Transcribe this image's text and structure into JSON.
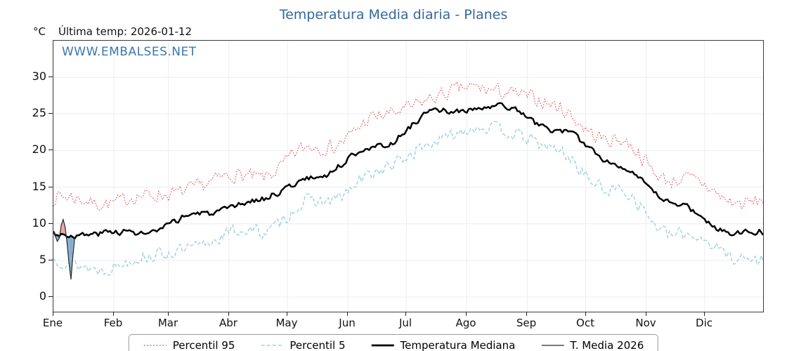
{
  "title": "Temperatura Media diaria - Planes",
  "header": {
    "unit_label": "°C",
    "last_temp_label": "Última temp: 2026-01-12"
  },
  "watermark": "WWW.EMBALSES.NET",
  "colors": {
    "title_blue": "#35689d",
    "watermark_blue": "#3c78ad",
    "percentil95_red": "#dd5555",
    "percentil5_blue": "#9fd0e0",
    "median_black": "#000000",
    "tmedia_line": "#2a2a2a",
    "fill_above": "#e8a3a3",
    "fill_below": "#7fa8cc",
    "grid": "#e9edf3"
  },
  "chart_data": {
    "type": "line",
    "title": "Temperatura Media diaria - Planes",
    "xlabel": "",
    "ylabel": "°C",
    "x_tick_labels": [
      "Ene",
      "Feb",
      "Mar",
      "Abr",
      "May",
      "Jun",
      "Jul",
      "Ago",
      "Sep",
      "Oct",
      "Nov",
      "Dic"
    ],
    "month_start_days": [
      0,
      31,
      59,
      90,
      120,
      151,
      181,
      212,
      243,
      273,
      304,
      334
    ],
    "month_lengths": [
      31,
      28,
      31,
      30,
      31,
      30,
      31,
      31,
      30,
      31,
      30,
      31
    ],
    "days_in_year": 365,
    "yticks": [
      0,
      5,
      10,
      15,
      20,
      25,
      30
    ],
    "ylim": [
      -2,
      35
    ],
    "grid": true,
    "legend_position": "bottom",
    "series": [
      {
        "name": "Percentil 95",
        "style": "dotted",
        "color": "#dd5555",
        "noise": 1.2,
        "monthly": [
          13.2,
          13.3,
          15.3,
          16.8,
          20.3,
          24.2,
          27.6,
          28.6,
          25.8,
          21.0,
          16.2,
          13.3
        ]
      },
      {
        "name": "Percentil 5",
        "style": "dashed",
        "color": "#9fd0e0",
        "noise": 1.1,
        "monthly": [
          4.0,
          5.0,
          7.2,
          9.3,
          12.8,
          16.8,
          21.6,
          23.3,
          19.8,
          14.3,
          8.8,
          5.8
        ]
      },
      {
        "name": "Temperatura Mediana",
        "style": "solid",
        "color": "#000000",
        "noise": 0.5,
        "monthly": [
          8.6,
          8.8,
          11.2,
          13.2,
          16.6,
          20.6,
          25.2,
          26.0,
          23.0,
          18.2,
          12.6,
          8.8
        ]
      },
      {
        "name": "T. Media 2026",
        "style": "thin",
        "color": "#2a2a2a",
        "days": [
          0,
          1,
          2,
          3,
          4,
          5,
          6,
          7,
          8,
          9,
          10,
          11
        ],
        "values": [
          9.0,
          8.3,
          7.6,
          8.0,
          9.8,
          10.6,
          9.6,
          7.4,
          4.6,
          2.4,
          5.6,
          8.2
        ]
      }
    ]
  }
}
